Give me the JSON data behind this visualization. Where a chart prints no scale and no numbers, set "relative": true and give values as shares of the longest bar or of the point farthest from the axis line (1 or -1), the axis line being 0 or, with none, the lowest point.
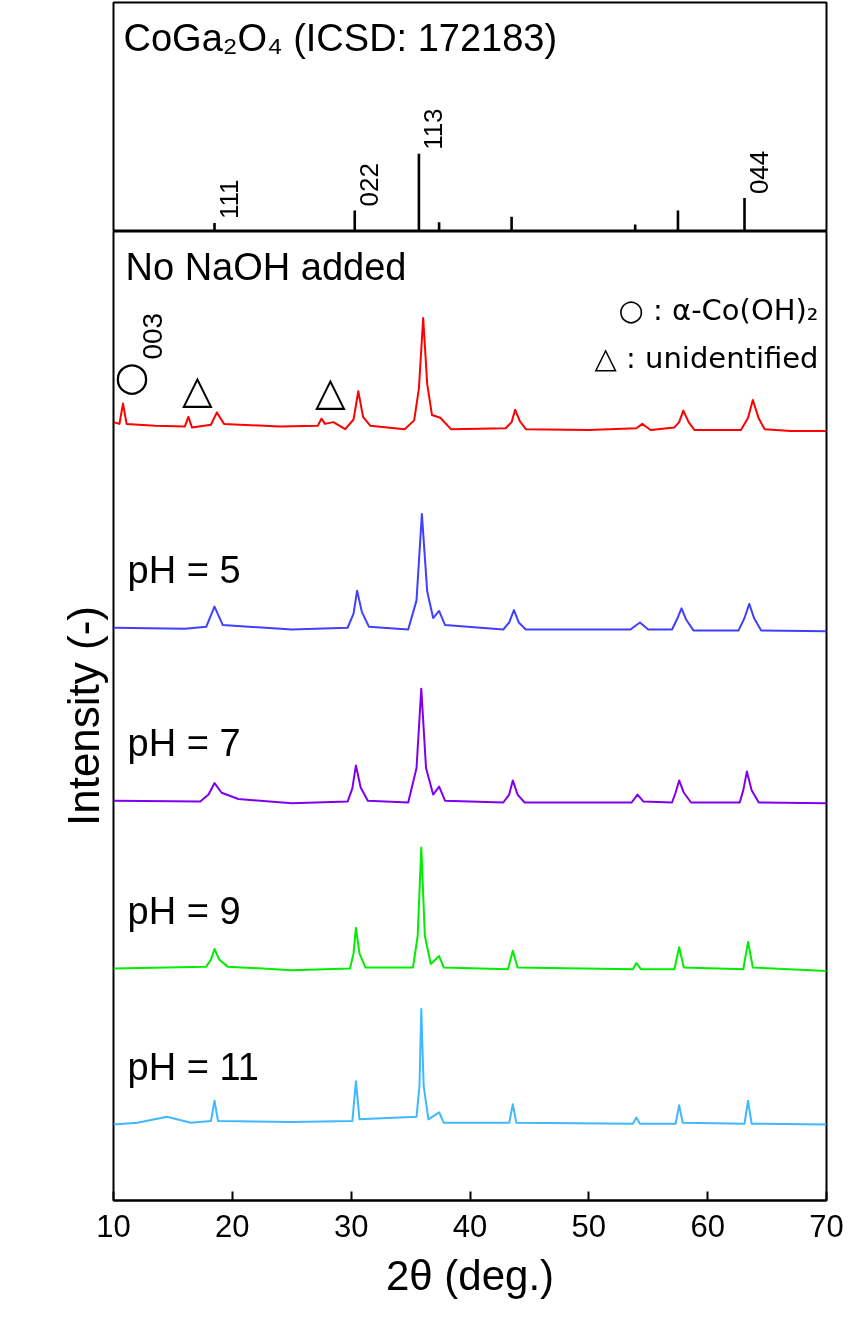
{
  "chart_data": [
    {
      "type": "bar",
      "title": "CoGa₂O₄ (ICSD: 172183)",
      "relative": true,
      "tick_labels": false,
      "xlim": [
        10,
        70
      ],
      "color": "#000000",
      "x": [
        18.5,
        30.3,
        35.7,
        37.4,
        43.5,
        47.5,
        53.9,
        57.5,
        63.1,
        66.5
      ],
      "values": [
        0.11,
        0.27,
        1,
        0.12,
        0.19,
        0.01,
        0.09,
        0.27,
        0.43,
        0.01
      ],
      "annotations": [
        {
          "text": "111",
          "x": 18.5,
          "y": 0.11
        },
        {
          "text": "022",
          "x": 30.3,
          "y": 0.27
        },
        {
          "text": "113",
          "x": 35.7,
          "y": 1
        },
        {
          "text": "044",
          "x": 63.1,
          "y": 0.43
        }
      ]
    },
    {
      "type": "line",
      "relative": true,
      "tick_labels": "x",
      "xlabel": "2θ (deg.)",
      "ylabel": "Intensity (-)",
      "xlim": [
        10,
        70
      ],
      "xticks": [
        10,
        20,
        30,
        40,
        50,
        60,
        70
      ],
      "series": [
        {
          "name": "No NaOH added",
          "color": "#ff0000",
          "x": [
            10.0,
            10.5,
            10.8,
            11.1,
            13.5,
            16.0,
            16.3,
            16.6,
            18.2,
            18.7,
            19.3,
            24.0,
            27.2,
            27.5,
            27.8,
            28.5,
            29.5,
            30.2,
            30.6,
            31.0,
            31.6,
            34.5,
            35.3,
            35.7,
            36.06,
            36.4,
            36.8,
            37.5,
            38.4,
            43.0,
            43.5,
            43.8,
            44.2,
            44.7,
            50.0,
            54.0,
            54.5,
            55.2,
            57.2,
            57.6,
            57.95,
            58.4,
            58.9,
            62.8,
            63.4,
            63.8,
            64.3,
            64.8,
            67.0,
            70.0
          ],
          "values": [
            0.882,
            0.88,
            0.903,
            0.88,
            0.878,
            0.877,
            0.888,
            0.876,
            0.879,
            0.893,
            0.88,
            0.877,
            0.878,
            0.886,
            0.88,
            0.882,
            0.874,
            0.885,
            0.917,
            0.888,
            0.878,
            0.874,
            0.884,
            0.92,
            1.0,
            0.925,
            0.89,
            0.887,
            0.874,
            0.875,
            0.882,
            0.896,
            0.883,
            0.874,
            0.873,
            0.875,
            0.88,
            0.873,
            0.876,
            0.882,
            0.895,
            0.882,
            0.873,
            0.873,
            0.887,
            0.907,
            0.886,
            0.874,
            0.872,
            0.872
          ]
        },
        {
          "name": "pH = 5",
          "color": "#4040ff",
          "x": [
            10,
            16,
            17.8,
            18.5,
            19.2,
            25,
            29.7,
            30.2,
            30.5,
            30.9,
            31.5,
            34.8,
            35.5,
            35.95,
            36.4,
            36.9,
            37.4,
            37.9,
            42.8,
            43.3,
            43.7,
            44.1,
            44.7,
            53.5,
            54.3,
            55.0,
            57.0,
            57.4,
            57.8,
            58.2,
            58.8,
            62.6,
            63.1,
            63.5,
            63.9,
            64.5,
            70
          ],
          "values": [
            0.649,
            0.648,
            0.65,
            0.673,
            0.652,
            0.647,
            0.649,
            0.665,
            0.691,
            0.667,
            0.65,
            0.647,
            0.68,
            0.778,
            0.69,
            0.66,
            0.668,
            0.652,
            0.647,
            0.655,
            0.669,
            0.655,
            0.647,
            0.647,
            0.655,
            0.647,
            0.647,
            0.658,
            0.671,
            0.658,
            0.646,
            0.646,
            0.66,
            0.676,
            0.66,
            0.646,
            0.645
          ]
        },
        {
          "name": "pH = 7",
          "color": "#8000ee",
          "x": [
            10,
            17.3,
            18.0,
            18.5,
            19.1,
            20.5,
            25,
            29.7,
            30.1,
            30.4,
            30.8,
            31.4,
            34.8,
            35.5,
            35.9,
            36.3,
            36.9,
            37.4,
            37.9,
            42.8,
            43.3,
            43.6,
            44.0,
            44.6,
            53.6,
            54.1,
            54.6,
            57.0,
            57.3,
            57.6,
            58.0,
            58.6,
            62.7,
            63.0,
            63.3,
            63.7,
            64.3,
            70
          ],
          "values": [
            0.453,
            0.452,
            0.46,
            0.473,
            0.462,
            0.455,
            0.45,
            0.452,
            0.467,
            0.493,
            0.468,
            0.453,
            0.451,
            0.49,
            0.58,
            0.49,
            0.46,
            0.469,
            0.453,
            0.451,
            0.46,
            0.476,
            0.46,
            0.451,
            0.451,
            0.46,
            0.452,
            0.451,
            0.462,
            0.476,
            0.462,
            0.451,
            0.451,
            0.465,
            0.486,
            0.465,
            0.451,
            0.45
          ]
        },
        {
          "name": "pH = 9",
          "color": "#00ee00",
          "x": [
            10,
            17.8,
            18.2,
            18.5,
            18.9,
            19.6,
            25,
            29.9,
            30.2,
            30.4,
            30.7,
            31.2,
            35.2,
            35.6,
            35.9,
            36.2,
            36.7,
            37.4,
            37.8,
            43.2,
            43.6,
            44.0,
            53.7,
            54.0,
            54.4,
            57.2,
            57.6,
            58.0,
            63.0,
            63.4,
            63.8,
            70
          ],
          "values": [
            0.263,
            0.265,
            0.273,
            0.285,
            0.273,
            0.265,
            0.261,
            0.263,
            0.28,
            0.309,
            0.28,
            0.264,
            0.264,
            0.3,
            0.4,
            0.3,
            0.268,
            0.277,
            0.264,
            0.262,
            0.283,
            0.264,
            0.262,
            0.269,
            0.262,
            0.262,
            0.287,
            0.264,
            0.262,
            0.293,
            0.264,
            0.26
          ]
        },
        {
          "name": "pH = 11",
          "color": "#40b8ff",
          "x": [
            10,
            12,
            14.5,
            16.5,
            18.2,
            18.5,
            18.8,
            25,
            30.1,
            30.4,
            30.7,
            35.5,
            35.75,
            35.9,
            36.1,
            36.5,
            37.4,
            37.8,
            43.3,
            43.6,
            43.9,
            53.7,
            54.0,
            54.3,
            57.3,
            57.6,
            57.9,
            63.1,
            63.4,
            63.7,
            70
          ],
          "values": [
            0.086,
            0.088,
            0.095,
            0.088,
            0.09,
            0.113,
            0.09,
            0.089,
            0.09,
            0.135,
            0.092,
            0.095,
            0.13,
            0.217,
            0.13,
            0.092,
            0.1,
            0.088,
            0.088,
            0.109,
            0.088,
            0.087,
            0.094,
            0.087,
            0.087,
            0.108,
            0.088,
            0.087,
            0.113,
            0.087,
            0.086
          ]
        }
      ],
      "annotations": [
        {
          "text": "○",
          "x": 10.8,
          "y": 0.903
        },
        {
          "text": "△",
          "x": 16.3,
          "y": 0.888
        },
        {
          "text": "△",
          "x": 27.5,
          "y": 0.886
        },
        {
          "text": "003",
          "x": 10.8,
          "y": 0.903
        },
        "○ : α-Co(OH)₂",
        "△ : unidentified"
      ]
    }
  ]
}
